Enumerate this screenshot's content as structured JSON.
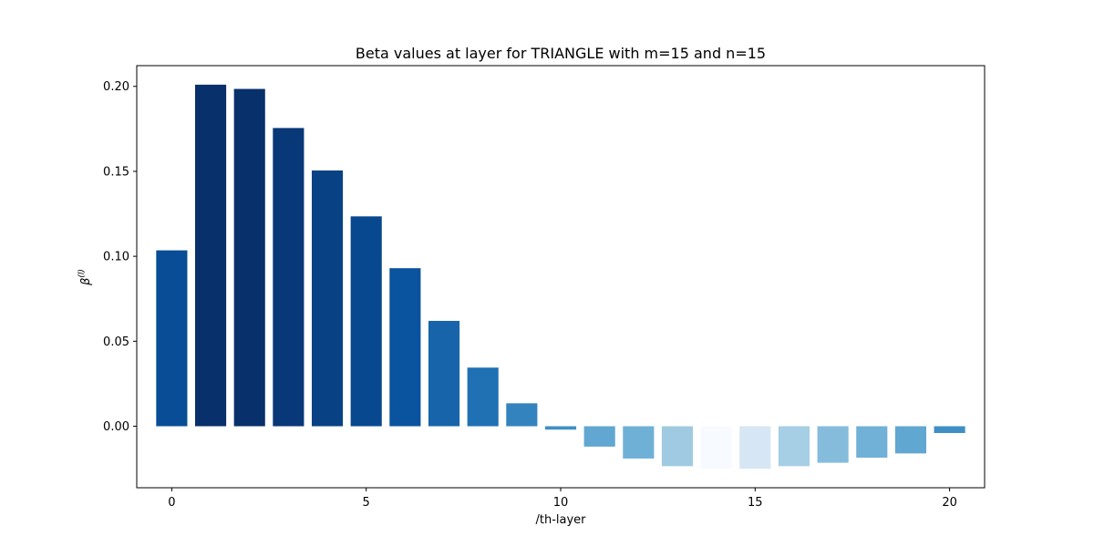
{
  "chart_data": {
    "type": "bar",
    "title": "Beta values at layer for TRIANGLE with m=15 and n=15",
    "xlabel": "/th-layer",
    "ylabel": "β",
    "ylabel_superscript": "(l)",
    "x": [
      0,
      1,
      2,
      3,
      4,
      5,
      6,
      7,
      8,
      9,
      10,
      11,
      12,
      13,
      14,
      15,
      16,
      17,
      18,
      19,
      20
    ],
    "values": [
      0.1035,
      0.201,
      0.1985,
      0.1755,
      0.1505,
      0.1235,
      0.093,
      0.062,
      0.0345,
      0.0135,
      -0.002,
      -0.012,
      -0.019,
      -0.0235,
      -0.025,
      -0.025,
      -0.0235,
      -0.0215,
      -0.0185,
      -0.016,
      -0.004
    ],
    "colors": [
      "#084d96",
      "#08306b",
      "#08306b",
      "#083877",
      "#084184",
      "#08488e",
      "#0a539e",
      "#1764ab",
      "#2070b4",
      "#3383be",
      "#4090c5",
      "#61a7d2",
      "#6fb0d7",
      "#9fcae1",
      "#f7fbff",
      "#d6e6f4",
      "#a6cee4",
      "#85bcdc",
      "#71b1d7",
      "#60a7d2",
      "#3f8fc5"
    ],
    "xlim": [
      -0.9,
      20.9
    ],
    "ylim": [
      -0.0362,
      0.2122
    ],
    "xticks": [
      0,
      5,
      10,
      15,
      20
    ],
    "xtick_labels": [
      "0",
      "5",
      "10",
      "15",
      "20"
    ],
    "yticks": [
      0.0,
      0.05,
      0.1,
      0.15,
      0.2
    ],
    "ytick_labels": [
      "0.00",
      "0.05",
      "0.10",
      "0.15",
      "0.20"
    ],
    "grid": false,
    "legend": false
  }
}
